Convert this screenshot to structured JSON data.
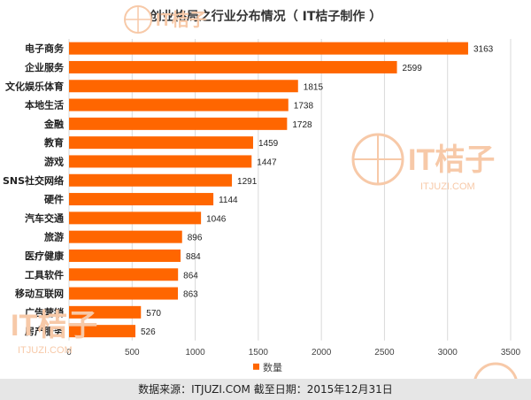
{
  "colors": {
    "bar": "#ff6600",
    "grid": "#d9d9d9",
    "axis_text": "#444444",
    "watermark": "#f7c9a8"
  },
  "chart_data": {
    "type": "bar",
    "orientation": "horizontal",
    "title": "创业格局之行业分布情况（ IT桔子制作 ）",
    "categories": [
      "电子商务",
      "企业服务",
      "文化娱乐体育",
      "本地生活",
      "金融",
      "教育",
      "游戏",
      "SNS社交网络",
      "硬件",
      "汽车交通",
      "旅游",
      "医疗健康",
      "工具软件",
      "移动互联网",
      "广告营销",
      "房产服务"
    ],
    "series": [
      {
        "name": "数量",
        "values": [
          3163,
          2599,
          1815,
          1738,
          1728,
          1459,
          1447,
          1291,
          1144,
          1046,
          896,
          884,
          864,
          863,
          570,
          526
        ]
      }
    ],
    "xlim": [
      0,
      3500
    ],
    "xticks": [
      0,
      500,
      1000,
      1500,
      2000,
      2500,
      3000,
      3500
    ],
    "grid": true,
    "legend": "bottom"
  },
  "footer": {
    "text": "数据来源：ITJUZI.COM  截至日期：2015年12月31日"
  },
  "watermark": {
    "brand": "IT桔子",
    "url": "ITJUZI.COM"
  }
}
